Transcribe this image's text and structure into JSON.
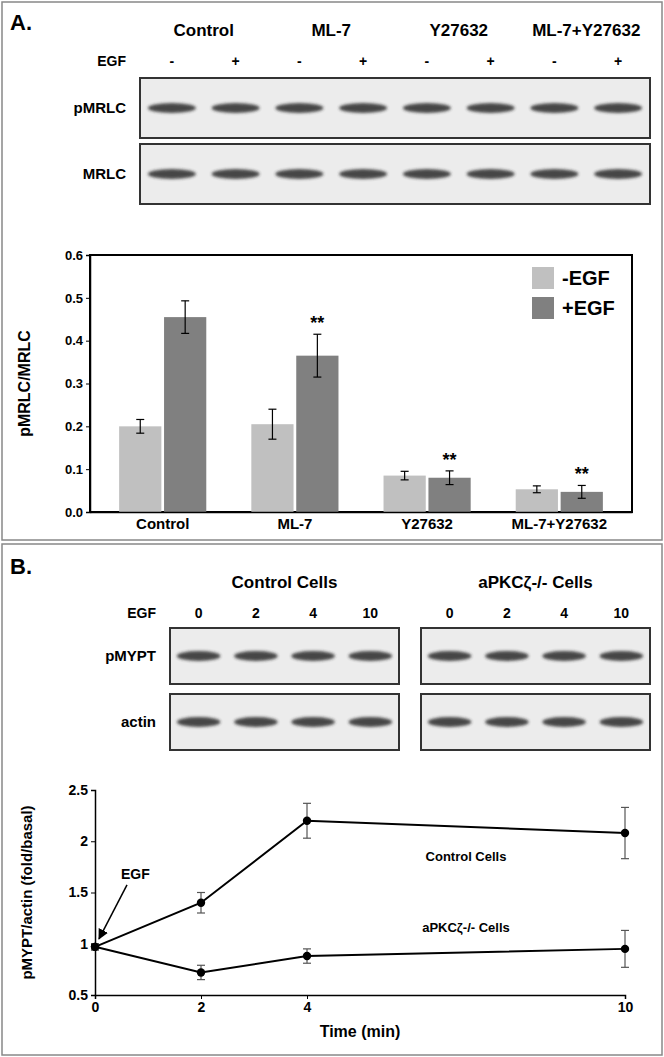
{
  "panels": [
    "A.",
    "B."
  ],
  "blots": [
    {
      "groups": [
        "Control",
        "ML-7",
        "Y27632",
        "ML-7+Y27632"
      ],
      "treatment": "EGF",
      "lanes": [
        "-",
        "+",
        "-",
        "+",
        "-",
        "+",
        "-",
        "+"
      ],
      "rows": [
        "pMRLC",
        "MRLC"
      ]
    },
    {
      "groups": [
        "Control Cells",
        "aPKCζ-/- Cells"
      ],
      "treatment": "EGF",
      "lanes": [
        "0",
        "2",
        "4",
        "10",
        "0",
        "2",
        "4",
        "10"
      ],
      "rows": [
        "pMYPT",
        "actin"
      ]
    }
  ],
  "chart_data": [
    {
      "type": "bar",
      "categories": [
        "Control",
        "ML-7",
        "Y27632",
        "ML-7+Y27632"
      ],
      "series": [
        {
          "name": "-EGF",
          "color": "#c0c0c0",
          "values": [
            0.2,
            0.205,
            0.085,
            0.053
          ],
          "errors": [
            0.016,
            0.035,
            0.01,
            0.008
          ]
        },
        {
          "name": "+EGF",
          "color": "#808080",
          "values": [
            0.455,
            0.365,
            0.08,
            0.047
          ],
          "errors": [
            0.038,
            0.05,
            0.016,
            0.015
          ]
        }
      ],
      "ylim": [
        0,
        0.6
      ],
      "yticks": [
        {
          "value": 0,
          "label": "0.0"
        },
        0.1,
        0.2,
        0.3,
        0.4,
        0.5,
        0.6
      ],
      "y_label": "pMRLC/MRLC",
      "legend": "upper right",
      "annotations": [
        {
          "text": "**",
          "x": "ML-7",
          "series": "+EGF"
        },
        {
          "text": "**",
          "x": "Y27632",
          "series": "+EGF"
        },
        {
          "text": "**",
          "x": "ML-7+Y27632",
          "series": "+EGF"
        }
      ]
    },
    {
      "type": "line",
      "x": [
        0,
        2,
        4,
        10
      ],
      "series": [
        {
          "name": "Control Cells",
          "color": "#000000",
          "marker": "circle",
          "values": [
            0.97,
            1.4,
            2.2,
            2.08
          ],
          "errors": [
            0.03,
            0.1,
            0.17,
            0.25
          ]
        },
        {
          "name": "aPKCζ-/- Cells",
          "color": "#000000",
          "marker": "circle",
          "values": [
            0.97,
            0.72,
            0.88,
            0.95
          ],
          "errors": [
            0.03,
            0.07,
            0.07,
            0.18
          ]
        }
      ],
      "xlim": [
        0,
        10
      ],
      "xticks": [
        0,
        2,
        4,
        10
      ],
      "ylim": [
        0.5,
        2.5
      ],
      "yticks": [
        0.5,
        1,
        1.5,
        2,
        2.5
      ],
      "x_label": "Time (min)",
      "y_label": "pMYPT/actin (fold/basal)",
      "legend": "inline",
      "annotations": [
        {
          "text": "EGF",
          "x": 0
        }
      ]
    }
  ]
}
